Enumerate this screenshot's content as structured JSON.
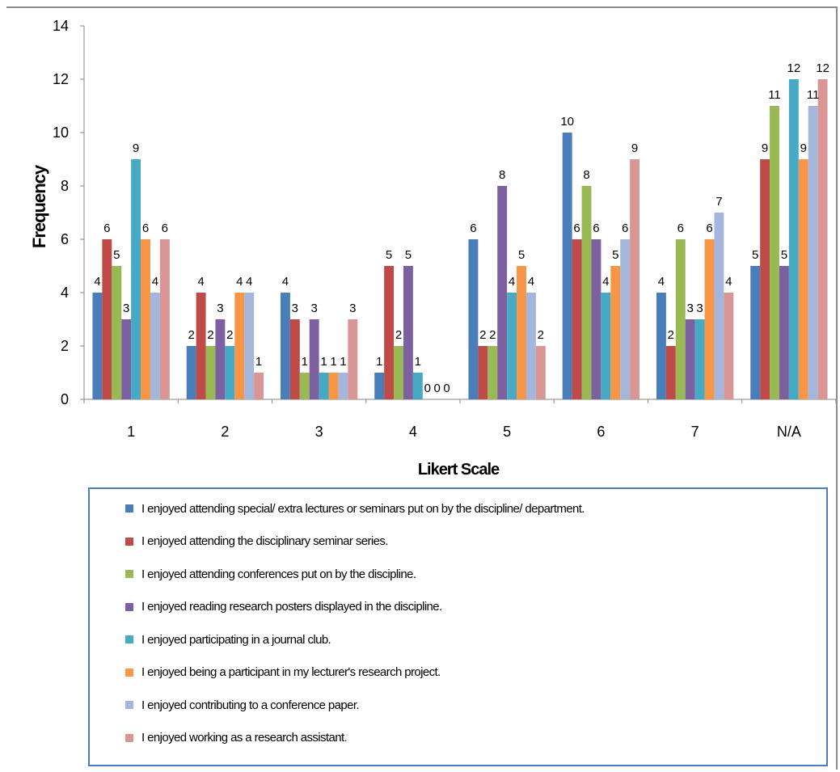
{
  "chart_data": {
    "type": "bar",
    "title": "",
    "xlabel": "Likert Scale",
    "ylabel": "Frequency",
    "ylim": [
      0,
      14
    ],
    "yticks": [
      0,
      2,
      4,
      6,
      8,
      10,
      12,
      14
    ],
    "grid": false,
    "legend_position": "bottom",
    "categories": [
      "1",
      "2",
      "3",
      "4",
      "5",
      "6",
      "7",
      "N/A"
    ],
    "series": [
      {
        "name": "I enjoyed attending special/ extra lectures or seminars put on by the discipline/ department.",
        "color": "#4a7ebb",
        "values": [
          4,
          2,
          4,
          1,
          6,
          10,
          4,
          5
        ]
      },
      {
        "name": "I enjoyed attending the disciplinary seminar series.",
        "color": "#be4b48",
        "values": [
          6,
          4,
          3,
          5,
          2,
          6,
          2,
          9
        ]
      },
      {
        "name": "I enjoyed attending conferences put on by the discipline.",
        "color": "#98b954",
        "values": [
          5,
          2,
          1,
          2,
          2,
          8,
          6,
          11
        ]
      },
      {
        "name": "I enjoyed reading research posters displayed in the discipline.",
        "color": "#7d60a0",
        "values": [
          3,
          3,
          3,
          5,
          8,
          6,
          3,
          5
        ]
      },
      {
        "name": "I enjoyed participating in a journal club.",
        "color": "#46aac5",
        "values": [
          9,
          2,
          1,
          1,
          4,
          4,
          3,
          12
        ]
      },
      {
        "name": "I enjoyed being a participant in my lecturer's research project.",
        "color": "#f79646",
        "values": [
          6,
          4,
          1,
          0,
          5,
          5,
          6,
          9
        ]
      },
      {
        "name": "I enjoyed contributing to a conference paper.",
        "color": "#a5b6dd",
        "values": [
          4,
          4,
          1,
          0,
          4,
          6,
          7,
          11
        ]
      },
      {
        "name": "I enjoyed working as a research assistant.",
        "color": "#d99694",
        "values": [
          6,
          1,
          3,
          0,
          2,
          9,
          4,
          12
        ]
      }
    ]
  }
}
